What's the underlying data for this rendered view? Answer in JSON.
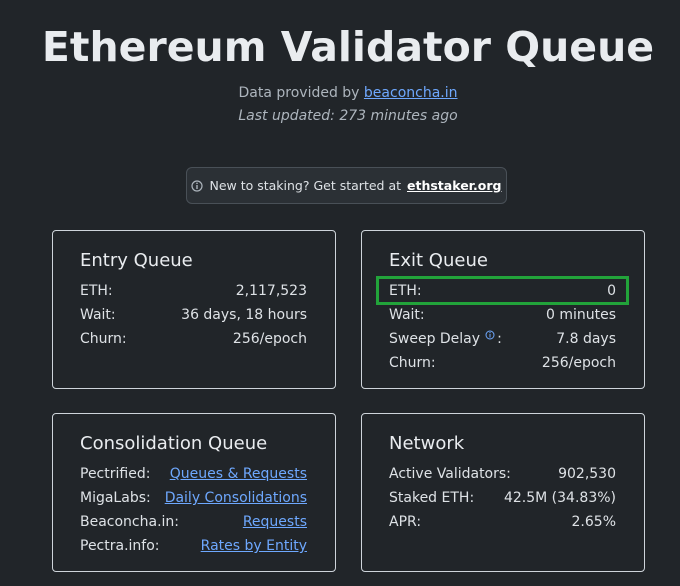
{
  "header": {
    "title": "Ethereum Validator Queue",
    "source_prefix": "Data provided by",
    "source_link": "beaconcha.in",
    "last_updated": "Last updated: 273 minutes ago"
  },
  "banner": {
    "text": "New to staking? Get started at",
    "link": "ethstaker.org"
  },
  "cards": [
    {
      "title": "Entry Queue",
      "rows": [
        {
          "label": "ETH:",
          "value": "2,117,523"
        },
        {
          "label": "Wait:",
          "value": "36 days, 18 hours"
        },
        {
          "label": "Churn:",
          "value": "256/epoch"
        }
      ]
    },
    {
      "title": "Exit Queue",
      "rows": [
        {
          "label": "ETH:",
          "value": "0"
        },
        {
          "label": "Wait:",
          "value": "0 minutes"
        },
        {
          "label": "Sweep Delay",
          "suffix": ":",
          "value": "7.8 days"
        },
        {
          "label": "Churn:",
          "value": "256/epoch"
        }
      ]
    },
    {
      "title": "Consolidation Queue",
      "rows": [
        {
          "label": "Pectrified:",
          "link": "Queues & Requests"
        },
        {
          "label": "MigaLabs:",
          "link": "Daily Consolidations"
        },
        {
          "label": "Beaconcha.in:",
          "link": "Requests"
        },
        {
          "label": "Pectra.info:",
          "link": "Rates by Entity"
        }
      ]
    },
    {
      "title": "Network",
      "rows": [
        {
          "label": "Active Validators:",
          "value": "902,530"
        },
        {
          "label": "Staked ETH:",
          "value": "42.5M (34.83%)"
        },
        {
          "label": "APR:",
          "value": "2.65%"
        }
      ]
    }
  ]
}
